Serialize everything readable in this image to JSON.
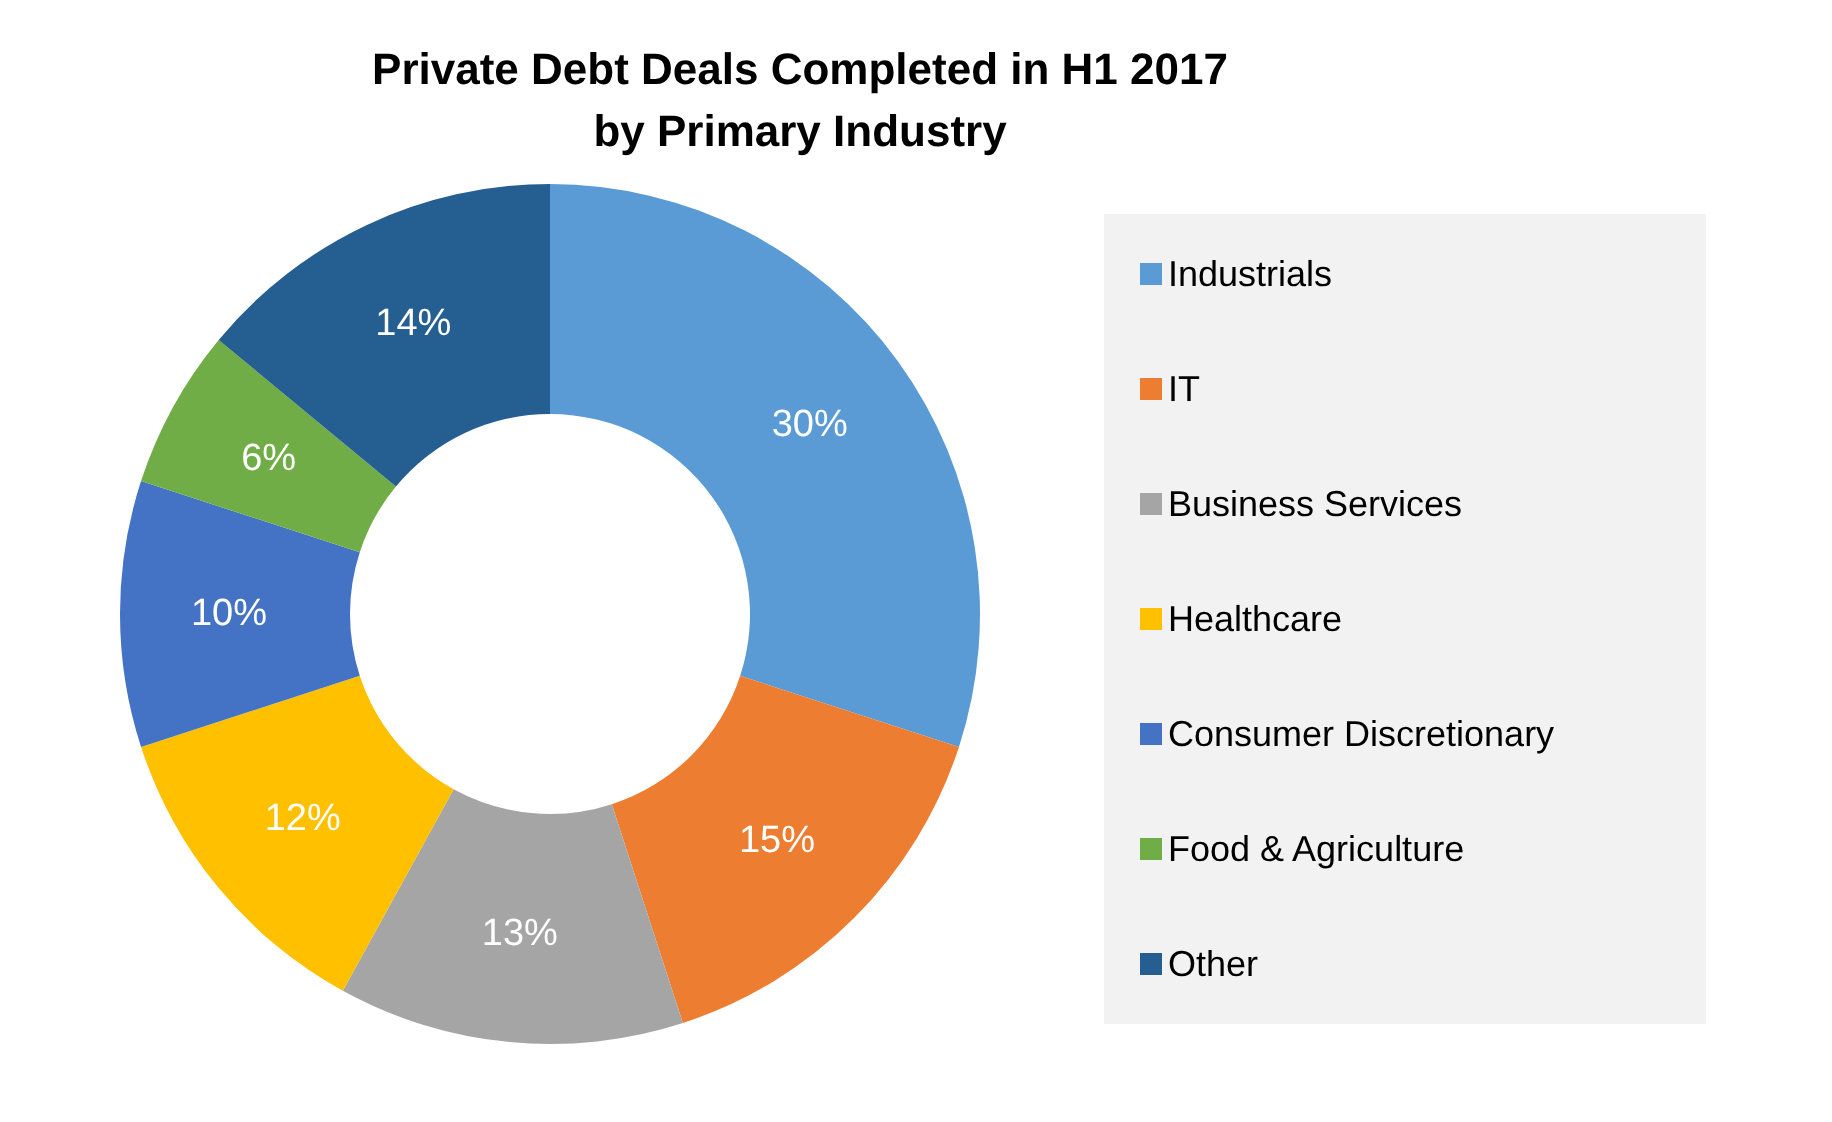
{
  "chart_data": {
    "type": "donut",
    "title": "Private Debt Deals Completed in H1 2017\nby Primary Industry",
    "categories": [
      "Industrials",
      "IT",
      "Business Services",
      "Healthcare",
      "Consumer Discretionary",
      "Food & Agriculture",
      "Other"
    ],
    "values": [
      30,
      15,
      13,
      12,
      10,
      6,
      14
    ],
    "value_labels": [
      "30%",
      "15%",
      "13%",
      "12%",
      "10%",
      "6%",
      "14%"
    ],
    "colors": [
      "#5b9bd5",
      "#ed7d31",
      "#a5a5a5",
      "#ffc000",
      "#4472c4",
      "#70ad47",
      "#255e91"
    ],
    "legend": "right"
  }
}
